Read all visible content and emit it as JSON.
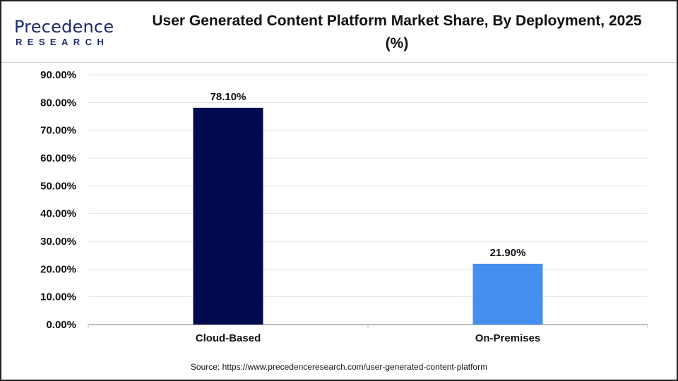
{
  "logo": {
    "name": "Precedence",
    "sub": "RESEARCH"
  },
  "title": "User Generated Content Platform Market Share, By Deployment, 2025 (%)",
  "source": "Source: https://www.precedenceresearch.com/user-generated-content-platform",
  "chart_data": {
    "type": "bar",
    "title": "User Generated Content Platform Market Share, By Deployment, 2025 (%)",
    "categories": [
      "Cloud-Based",
      "On-Premises"
    ],
    "values": [
      78.1,
      21.9
    ],
    "data_labels": [
      "78.10%",
      "21.90%"
    ],
    "colors": [
      "#020a4e",
      "#4590ee"
    ],
    "ylim": [
      0,
      90
    ],
    "yticks": [
      "0.00%",
      "10.00%",
      "20.00%",
      "30.00%",
      "40.00%",
      "50.00%",
      "60.00%",
      "70.00%",
      "80.00%",
      "90.00%"
    ],
    "grid": true,
    "legend": "none",
    "xlabel": "",
    "ylabel": ""
  }
}
